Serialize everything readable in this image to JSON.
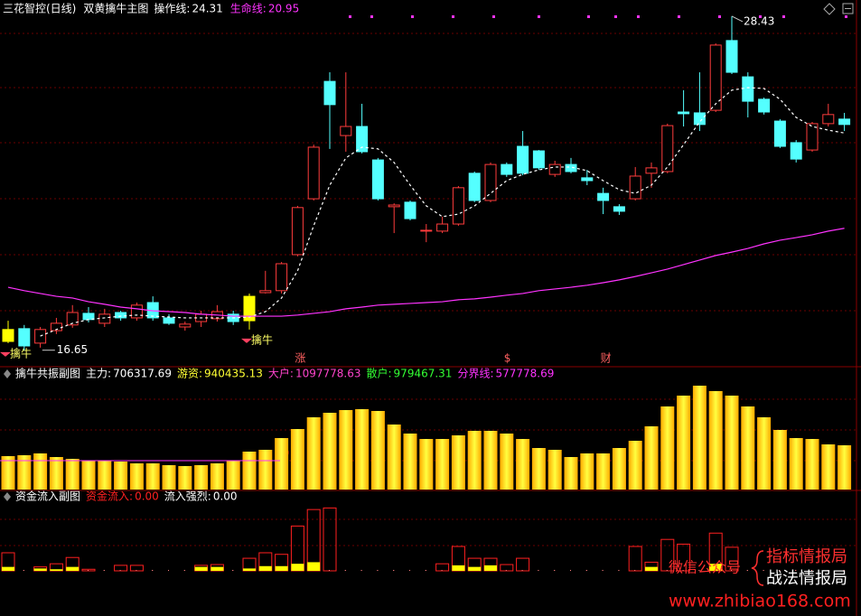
{
  "chart_data": [
    {
      "type": "candlestick",
      "stock": "三花智控(日线)",
      "title": "双黄擒牛主图",
      "ylim": [
        16.1,
        29.0
      ],
      "colors": {
        "up": "#ff3c3c",
        "down": "#54ffff",
        "signal": "#ffff00"
      },
      "open": [
        16.96,
        17.41,
        16.9,
        17.34,
        17.54,
        17.95,
        17.6,
        17.98,
        17.79,
        18.33,
        17.79,
        17.47,
        17.66,
        17.76,
        17.92,
        17.69,
        18.68,
        18.75,
        20.02,
        21.99,
        26.13,
        24.22,
        24.54,
        23.36,
        21.71,
        21.87,
        20.85,
        20.85,
        21.1,
        22.89,
        21.93,
        23.2,
        23.84,
        23.68,
        22.85,
        23.2,
        22.73,
        22.18,
        21.71,
        21.99,
        22.89,
        22.95,
        25.05,
        25.02,
        25.11,
        27.57,
        26.29,
        25.5,
        24.73,
        23.97,
        23.71,
        24.64,
        24.8
      ],
      "close": [
        17.38,
        16.8,
        17.38,
        17.6,
        17.98,
        17.73,
        17.92,
        17.79,
        18.24,
        17.79,
        17.6,
        17.57,
        17.92,
        18.01,
        17.66,
        18.55,
        18.75,
        19.7,
        21.68,
        23.81,
        25.31,
        24.54,
        23.65,
        21.99,
        21.77,
        21.29,
        20.88,
        21.1,
        22.38,
        21.93,
        23.2,
        22.85,
        22.89,
        23.08,
        23.2,
        22.95,
        22.63,
        21.93,
        21.55,
        22.79,
        23.08,
        24.57,
        24.99,
        24.61,
        27.41,
        26.45,
        25.43,
        25.05,
        23.84,
        23.39,
        24.64,
        24.96,
        24.61
      ],
      "high": [
        17.69,
        17.54,
        17.47,
        17.79,
        18.24,
        18.17,
        18.11,
        18.04,
        18.33,
        18.55,
        17.92,
        17.66,
        18.04,
        18.24,
        18.04,
        18.65,
        19.45,
        19.76,
        21.74,
        23.9,
        26.45,
        26.45,
        25.34,
        23.43,
        21.83,
        21.93,
        21.1,
        21.36,
        22.44,
        22.95,
        23.27,
        23.27,
        24.38,
        23.71,
        23.33,
        23.43,
        23.01,
        22.38,
        21.8,
        23.11,
        23.27,
        24.64,
        25.82,
        26.45,
        27.47,
        28.43,
        26.45,
        25.56,
        24.8,
        24.06,
        24.7,
        25.34,
        25.02
      ],
      "low": [
        16.9,
        16.65,
        16.74,
        17.22,
        17.44,
        17.63,
        17.47,
        17.69,
        17.69,
        17.69,
        17.54,
        17.34,
        17.47,
        17.66,
        17.54,
        17.38,
        18.65,
        18.65,
        19.96,
        21.93,
        23.75,
        23.65,
        23.59,
        21.93,
        20.78,
        21.23,
        20.46,
        20.78,
        21.04,
        21.87,
        21.87,
        22.76,
        22.82,
        23.01,
        22.76,
        22.89,
        22.47,
        21.45,
        21.42,
        21.93,
        22.38,
        22.89,
        24.54,
        24.38,
        25.05,
        26.39,
        24.86,
        24.96,
        23.78,
        23.27,
        23.65,
        24.54,
        24.38
      ],
      "series": [
        {
          "name": "操作线:",
          "color": "#ffffff",
          "dashed": true,
          "values": [
            null,
            null,
            17.15,
            17.38,
            17.6,
            17.73,
            17.79,
            17.85,
            17.89,
            17.85,
            17.82,
            17.79,
            17.79,
            17.79,
            17.79,
            17.82,
            18.01,
            18.49,
            19.45,
            21.04,
            22.47,
            23.43,
            23.81,
            23.75,
            23.27,
            22.47,
            21.74,
            21.36,
            21.45,
            21.74,
            22.18,
            22.63,
            22.85,
            23.01,
            23.11,
            23.11,
            22.98,
            22.63,
            22.31,
            22.18,
            22.47,
            23.11,
            23.9,
            24.7,
            25.34,
            25.82,
            25.91,
            25.88,
            25.5,
            24.86,
            24.54,
            24.41,
            24.31
          ]
        },
        {
          "name": "生命线:",
          "color": "#ff33ff",
          "dashed": false,
          "values": [
            18.87,
            18.75,
            18.65,
            18.55,
            18.49,
            18.36,
            18.27,
            18.17,
            18.11,
            18.04,
            18.01,
            17.98,
            17.92,
            17.89,
            17.85,
            17.85,
            17.85,
            17.85,
            17.89,
            17.95,
            18.01,
            18.11,
            18.17,
            18.24,
            18.27,
            18.3,
            18.33,
            18.36,
            18.43,
            18.46,
            18.52,
            18.59,
            18.65,
            18.75,
            18.81,
            18.87,
            18.94,
            19.03,
            19.13,
            19.25,
            19.38,
            19.51,
            19.67,
            19.83,
            19.99,
            20.11,
            20.24,
            20.4,
            20.53,
            20.62,
            20.72,
            20.85,
            20.95
          ]
        }
      ],
      "signal_labels": [
        "擒牛",
        null,
        null,
        null,
        null,
        null,
        null,
        null,
        null,
        null,
        null,
        null,
        null,
        null,
        null,
        "擒牛",
        null,
        null,
        null,
        null,
        null,
        null,
        null,
        null,
        null,
        null,
        null,
        null,
        null,
        null,
        null,
        null,
        null,
        null,
        null,
        null,
        null,
        null,
        null,
        null,
        null,
        null,
        null,
        null,
        null,
        null,
        null,
        null,
        null,
        null,
        null,
        null,
        null
      ],
      "event_labels": [
        null,
        null,
        null,
        null,
        null,
        null,
        null,
        null,
        null,
        null,
        null,
        null,
        null,
        null,
        null,
        null,
        null,
        null,
        "涨",
        null,
        null,
        null,
        null,
        null,
        null,
        null,
        null,
        null,
        null,
        null,
        null,
        "$",
        null,
        null,
        null,
        null,
        null,
        "财",
        null,
        null,
        null,
        null,
        null,
        null,
        null,
        null,
        null,
        null,
        null,
        null,
        null,
        null,
        null
      ]
    },
    {
      "type": "bar",
      "title": "擒牛共振副图",
      "ylim": [
        335000,
        1350000
      ],
      "series": [
        {
          "name": "主力:",
          "color": "#ffd000",
          "values": [
            615275,
            622850,
            638000,
            607700,
            592550,
            577400,
            577400,
            569825,
            554675,
            554675,
            539525,
            531950,
            539525,
            554675,
            577400,
            653150,
            668300,
            766775,
            842525,
            941000,
            978875,
            1001600,
            1009175,
            994025,
            880400,
            804650,
            759200,
            759200,
            789500,
            827375,
            827375,
            804650,
            759200,
            683450,
            668300,
            607700,
            638000,
            638000,
            683450,
            744050,
            865250,
            1031900,
            1122800,
            1206125,
            1160675,
            1122800,
            1031900,
            941000,
            834950,
            766775,
            759200,
            713750,
            706317.69
          ]
        }
      ],
      "readouts": [
        {
          "name": "游资:",
          "value": 940435.13,
          "color": "#ffff33"
        },
        {
          "name": "大户:",
          "value": 1097778.63,
          "color": "#ff44cc"
        },
        {
          "name": "散户:",
          "value": 979467.31,
          "color": "#33ff33"
        }
      ],
      "boundary": {
        "name": "分界线:",
        "value": 577778.69,
        "color": "#ff33ff"
      }
    },
    {
      "type": "bar",
      "title": "资金流入副图",
      "ylim": [
        0,
        100
      ],
      "series": [
        {
          "name": "资金流入:",
          "color": "#ff2020",
          "hollow": true,
          "readout_label": "0.00",
          "values": [
            23,
            0,
            5,
            9,
            17,
            2,
            0,
            7,
            7,
            0,
            0,
            0,
            7,
            8,
            0,
            16,
            23,
            21,
            57,
            78,
            80,
            0,
            0,
            0,
            0,
            0,
            0,
            9,
            31,
            16,
            16,
            8,
            16,
            0,
            0,
            0,
            0,
            0,
            0,
            31,
            11,
            40,
            34,
            0,
            48,
            30,
            0,
            0,
            0,
            0,
            0,
            0,
            0
          ]
        },
        {
          "name": "流入强烈:",
          "color": "#ffff00",
          "hollow": false,
          "readout_label": "0.00",
          "values": [
            5,
            0,
            3,
            2,
            5,
            0,
            0,
            0,
            0,
            0,
            0,
            0,
            5,
            5,
            0,
            3,
            6,
            6,
            9,
            11,
            0,
            0,
            0,
            0,
            0,
            0,
            0,
            0,
            7,
            5,
            7,
            0,
            0,
            0,
            0,
            0,
            0,
            0,
            0,
            0,
            5,
            0,
            0,
            0,
            9,
            0,
            0,
            0,
            0,
            0,
            0,
            0,
            0
          ]
        }
      ]
    }
  ],
  "watermark": {
    "line1": "指标情报局",
    "line2": "战法情报局",
    "wechat": "微信公众号",
    "url": "www.zhibiao168.com"
  }
}
